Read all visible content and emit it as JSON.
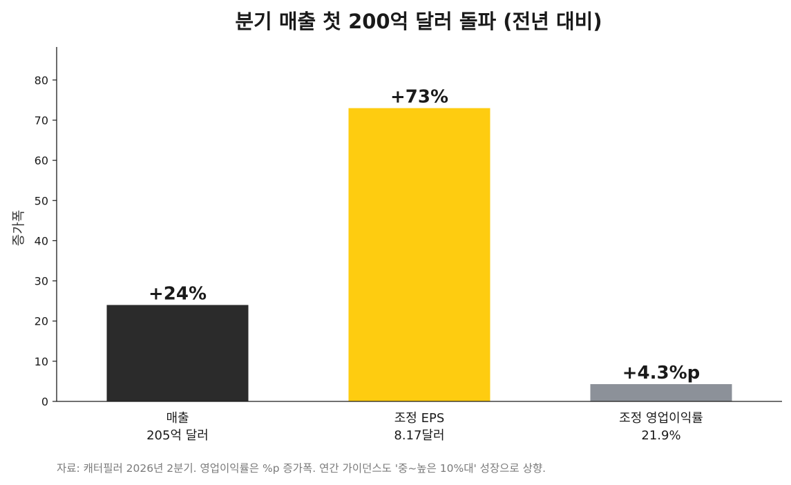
{
  "chart_data": {
    "type": "bar",
    "title": "분기 매출 첫 200억 달러 돌파 (전년 대비)",
    "ylabel": "증가폭",
    "xlabel": "",
    "ylim": [
      0,
      88
    ],
    "yticks": [
      0,
      10,
      20,
      30,
      40,
      50,
      60,
      70,
      80
    ],
    "categories": [
      [
        "매출",
        "205억 달러"
      ],
      [
        "조정 EPS",
        "8.17달러"
      ],
      [
        "조정 영업이익률",
        "21.9%"
      ]
    ],
    "values": [
      24,
      73,
      4.3
    ],
    "data_labels": [
      "+24%",
      "+73%",
      "+4.3%p"
    ],
    "colors": [
      "#2b2b2b",
      "#fecc10",
      "#8c9199"
    ],
    "grid": false,
    "legend": "none"
  },
  "footnote": "자료: 캐터필러 2026년 2분기. 영업이익률은 %p 증가폭. 연간 가이던스도 '중~높은 10%대' 성장으로 상향."
}
